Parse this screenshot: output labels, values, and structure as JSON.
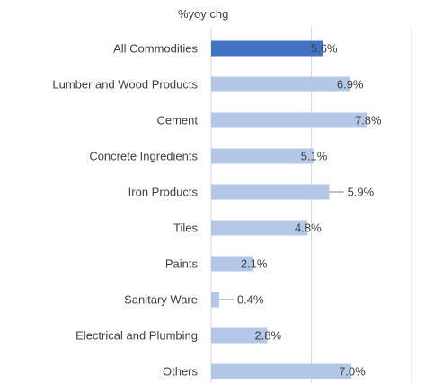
{
  "chart_data": {
    "type": "bar",
    "orientation": "horizontal",
    "unit_label": "%yoy chg",
    "categories": [
      "All Commodities",
      "Lumber and Wood Products",
      "Cement",
      "Concrete Ingredients",
      "Iron Products",
      "Tiles",
      "Paints",
      "Sanitary Ware",
      "Electrical and Plumbing",
      "Others"
    ],
    "values": [
      5.6,
      6.9,
      7.8,
      5.1,
      5.9,
      4.8,
      2.1,
      0.4,
      2.8,
      7.0
    ],
    "value_labels": [
      "5.6%",
      "6.9%",
      "7.8%",
      "5.1%",
      "5.9%",
      "4.8%",
      "2.1%",
      "0.4%",
      "2.8%",
      "7.0%"
    ],
    "highlight_index": 0,
    "xlim": [
      0,
      10
    ],
    "grid": true,
    "colors": {
      "highlight": "#4472c4",
      "bar": "#b4c7e7",
      "text": "#404040",
      "grid": "#d9d9d9"
    }
  }
}
